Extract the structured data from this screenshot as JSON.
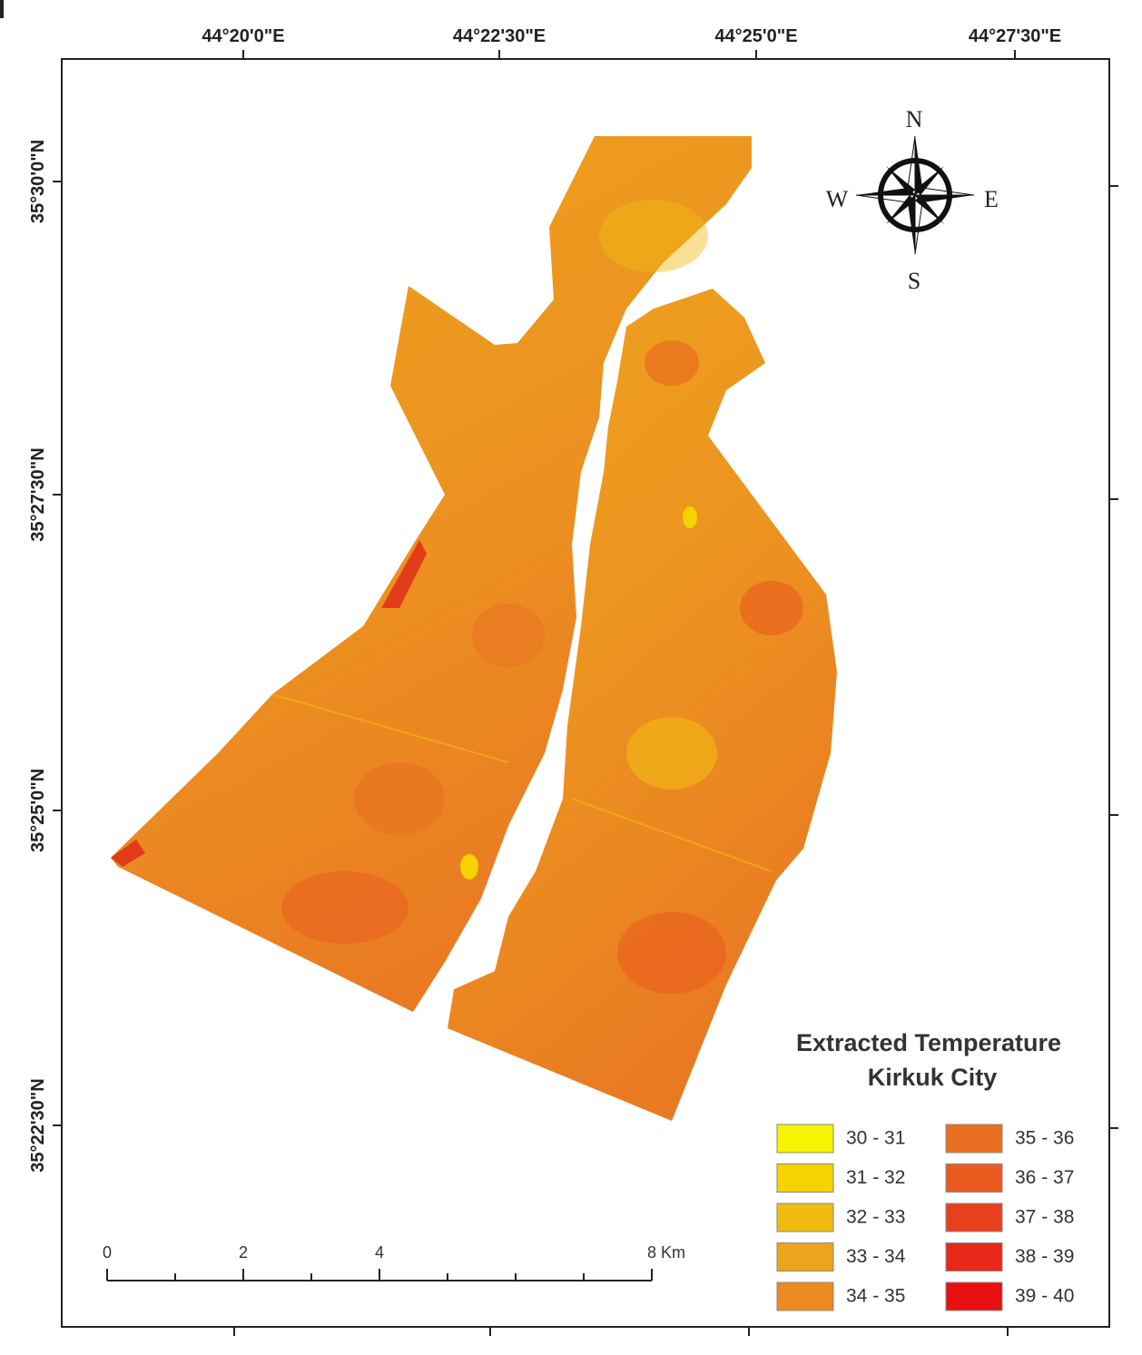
{
  "map": {
    "top_labels": [
      "44°20'0\"E",
      "44°22'30\"E",
      "44°25'0\"E",
      "44°27'30\"E"
    ],
    "left_labels": [
      "35°30'0\"N",
      "35°27'30\"N",
      "35°25'0\"N",
      "35°22'30\"N"
    ],
    "compass": {
      "north": "N",
      "east": "E",
      "south": "S",
      "west": "W"
    },
    "legend": {
      "title": [
        "Extracted Temperature",
        "Kirkuk City"
      ],
      "items": [
        {
          "label": "30 - 31",
          "color": "#f6f400"
        },
        {
          "label": "31 - 32",
          "color": "#f6d200"
        },
        {
          "label": "32 - 33",
          "color": "#f2bb12"
        },
        {
          "label": "33 - 34",
          "color": "#eea31c"
        },
        {
          "label": "34 - 35",
          "color": "#ec8a22"
        },
        {
          "label": "35 - 36",
          "color": "#ea6f22"
        },
        {
          "label": "36 - 37",
          "color": "#ea5a1e"
        },
        {
          "label": "37 - 38",
          "color": "#e8401c"
        },
        {
          "label": "38 - 39",
          "color": "#e82818"
        },
        {
          "label": "39 - 40",
          "color": "#e81010"
        }
      ]
    },
    "scale": {
      "labels": [
        "0",
        "2",
        "4",
        "8 Km"
      ]
    }
  }
}
